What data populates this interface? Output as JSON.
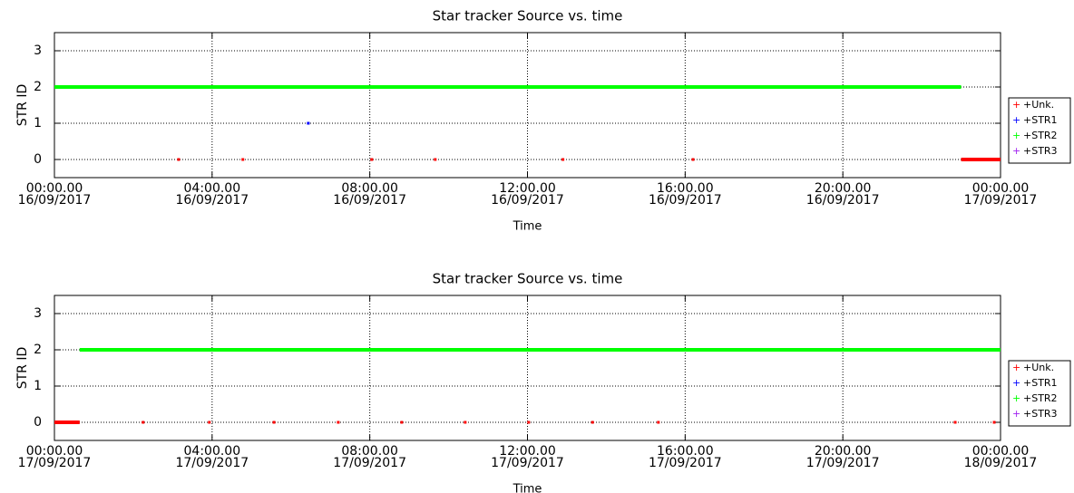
{
  "chart_data": [
    {
      "type": "line",
      "title": "Star tracker Source vs. time",
      "xlabel": "Time",
      "ylabel": "STR ID",
      "xlim": [
        0,
        24
      ],
      "ylim": [
        -0.5,
        3.5
      ],
      "yticks": [
        0,
        1,
        2,
        3
      ],
      "xticks": [
        {
          "value": 0,
          "label": "00:00.00\n16/09/2017"
        },
        {
          "value": 4,
          "label": "04:00.00\n16/09/2017"
        },
        {
          "value": 8,
          "label": "08:00.00\n16/09/2017"
        },
        {
          "value": 12,
          "label": "12:00.00\n16/09/2017"
        },
        {
          "value": 16,
          "label": "16:00.00\n16/09/2017"
        },
        {
          "value": 20,
          "label": "20:00.00\n16/09/2017"
        },
        {
          "value": 24,
          "label": "00:00.00\n17/09/2017"
        }
      ],
      "grid": true,
      "series": [
        {
          "name": "+Unk.",
          "color": "#ff0000",
          "x": [
            3.15,
            null,
            4.78,
            null,
            8.05,
            null,
            9.66,
            null,
            12.9,
            null,
            16.2,
            null,
            23.0,
            24
          ],
          "values": [
            0,
            null,
            0,
            null,
            0,
            null,
            0,
            null,
            0,
            null,
            0,
            null,
            0,
            0
          ]
        },
        {
          "name": "+STR1",
          "color": "#0000ff",
          "x": [
            6.44
          ],
          "values": [
            1
          ]
        },
        {
          "name": "+STR2",
          "color": "#00ff00",
          "x": [
            0,
            23.0
          ],
          "values": [
            2,
            2
          ]
        },
        {
          "name": "+STR3",
          "color": "#a020f0",
          "x": [],
          "values": []
        }
      ]
    },
    {
      "type": "line",
      "title": "Star tracker Source vs. time",
      "xlabel": "Time",
      "ylabel": "STR ID",
      "xlim": [
        0,
        24
      ],
      "ylim": [
        -0.5,
        3.5
      ],
      "yticks": [
        0,
        1,
        2,
        3
      ],
      "xticks": [
        {
          "value": 0,
          "label": "00:00.00\n17/09/2017"
        },
        {
          "value": 4,
          "label": "04:00.00\n17/09/2017"
        },
        {
          "value": 8,
          "label": "08:00.00\n17/09/2017"
        },
        {
          "value": 12,
          "label": "12:00.00\n17/09/2017"
        },
        {
          "value": 16,
          "label": "16:00.00\n17/09/2017"
        },
        {
          "value": 20,
          "label": "20:00.00\n17/09/2017"
        },
        {
          "value": 24,
          "label": "00:00.00\n18/09/2017"
        }
      ],
      "grid": true,
      "series": [
        {
          "name": "+Unk.",
          "color": "#ff0000",
          "x": [
            0,
            0.64,
            null,
            2.25,
            null,
            3.93,
            null,
            5.57,
            null,
            7.2,
            null,
            8.81,
            null,
            10.42,
            null,
            12.03,
            null,
            13.65,
            null,
            15.32,
            null,
            22.85,
            null,
            23.84
          ],
          "values": [
            0,
            0,
            null,
            0,
            null,
            0,
            null,
            0,
            null,
            0,
            null,
            0,
            null,
            0,
            null,
            0,
            null,
            0,
            null,
            0,
            null,
            0,
            null,
            0
          ]
        },
        {
          "name": "+STR1",
          "color": "#0000ff",
          "x": [],
          "values": []
        },
        {
          "name": "+STR2",
          "color": "#00ff00",
          "x": [
            0.64,
            24
          ],
          "values": [
            2,
            2
          ]
        },
        {
          "name": "+STR3",
          "color": "#a020f0",
          "x": [],
          "values": []
        }
      ]
    }
  ]
}
